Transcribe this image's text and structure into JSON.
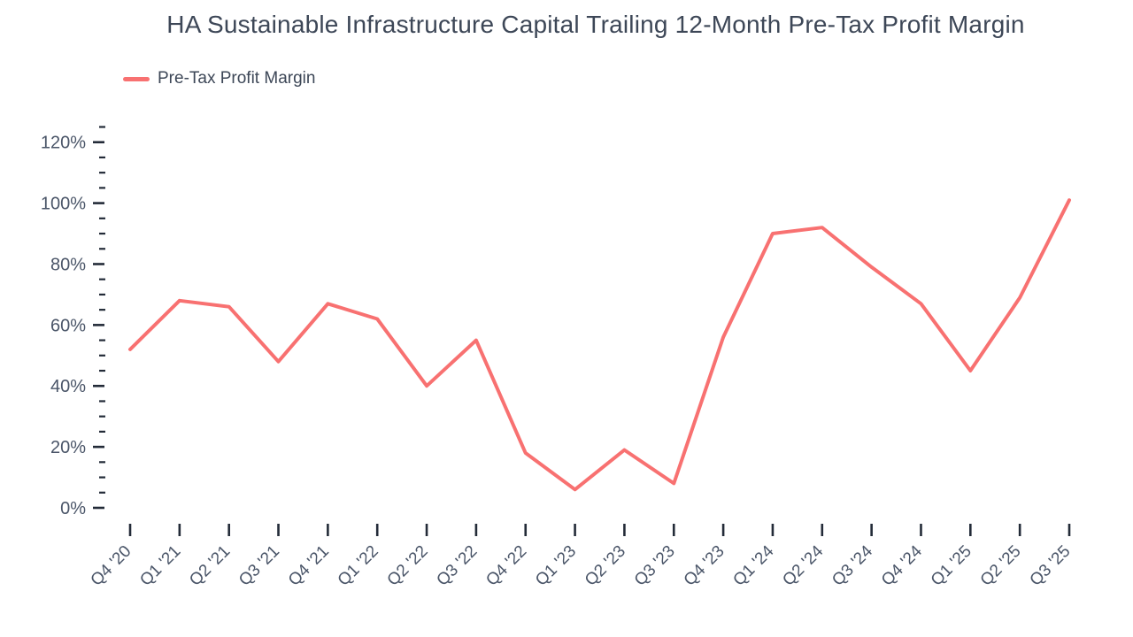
{
  "page": {
    "background_color": "#ffffff",
    "title_color": "#3d4757",
    "axis_label_color": "#4a5568",
    "tick_mark_color": "#232b38"
  },
  "chart_data": {
    "type": "line",
    "title": "HA Sustainable Infrastructure Capital Trailing 12-Month Pre-Tax Profit Margin",
    "categories": [
      "Q4 '20",
      "Q1 '21",
      "Q2 '21",
      "Q3 '21",
      "Q4 '21",
      "Q1 '22",
      "Q2 '22",
      "Q3 '22",
      "Q4 '22",
      "Q1 '23",
      "Q2 '23",
      "Q3 '23",
      "Q4 '23",
      "Q1 '24",
      "Q2 '24",
      "Q3 '24",
      "Q4 '24",
      "Q1 '25",
      "Q2 '25",
      "Q3 '25"
    ],
    "series": [
      {
        "name": "Pre-Tax Profit Margin",
        "color": "#f87171",
        "values": [
          52,
          68,
          66,
          48,
          67,
          62,
          40,
          55,
          18,
          6,
          19,
          8,
          56,
          90,
          92,
          79,
          67,
          45,
          69,
          101
        ]
      }
    ],
    "xlabel": "",
    "ylabel": "",
    "ylim": [
      0,
      125
    ],
    "y_major_step": 20,
    "y_minor_step": 5,
    "ytick_suffix": "%",
    "ytick_labels": [
      "0%",
      "20%",
      "40%",
      "60%",
      "80%",
      "100%",
      "120%"
    ],
    "grid": false,
    "legend_position": "top-left"
  }
}
